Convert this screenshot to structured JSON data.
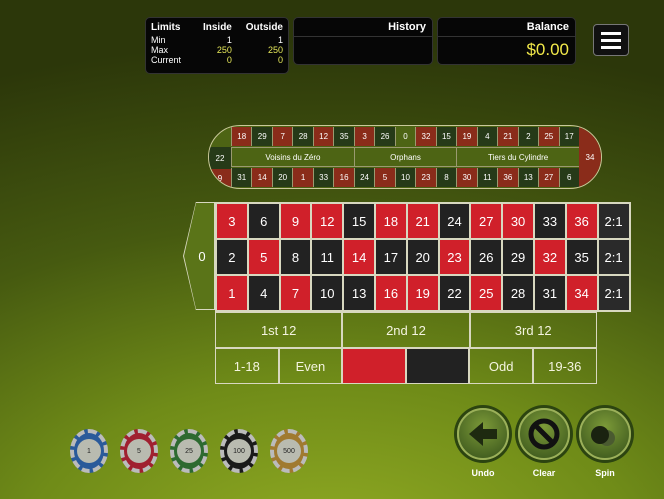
{
  "limits": {
    "title": "Limits",
    "inside_label": "Inside",
    "outside_label": "Outside",
    "rows": [
      {
        "label": "Min",
        "inside": "1",
        "outside": "1"
      },
      {
        "label": "Max",
        "inside": "250",
        "outside": "250"
      },
      {
        "label": "Current",
        "inside": "0",
        "outside": "0"
      }
    ]
  },
  "history": {
    "title": "History"
  },
  "balance": {
    "title": "Balance",
    "value": "$0.00"
  },
  "racetrack": {
    "top": [
      "18",
      "29",
      "7",
      "28",
      "12",
      "35",
      "3",
      "26",
      "0",
      "32",
      "15",
      "19",
      "4",
      "21",
      "2",
      "25",
      "17"
    ],
    "bottom": [
      "9",
      "31",
      "14",
      "20",
      "1",
      "33",
      "16",
      "24",
      "5",
      "10",
      "23",
      "8",
      "30",
      "11",
      "36",
      "13",
      "27",
      "6"
    ],
    "left": "22",
    "right": "34",
    "sections": [
      "Voisins du Zéro",
      "Orphans",
      "Tiers du Cylindre"
    ]
  },
  "table": {
    "zero": "0",
    "rows": [
      [
        "3",
        "6",
        "9",
        "12",
        "15",
        "18",
        "21",
        "24",
        "27",
        "30",
        "33",
        "36"
      ],
      [
        "2",
        "5",
        "8",
        "11",
        "14",
        "17",
        "20",
        "23",
        "26",
        "29",
        "32",
        "35"
      ],
      [
        "1",
        "4",
        "7",
        "10",
        "13",
        "16",
        "19",
        "22",
        "25",
        "28",
        "31",
        "34"
      ]
    ],
    "column_bet": "2:1",
    "dozens": [
      "1st 12",
      "2nd 12",
      "3rd 12"
    ],
    "outside": [
      "1-18",
      "Even",
      "",
      "",
      "Odd",
      "19-36"
    ],
    "reds": [
      1,
      3,
      5,
      7,
      9,
      12,
      14,
      16,
      18,
      19,
      21,
      23,
      25,
      27,
      30,
      32,
      34,
      36
    ]
  },
  "chips": [
    {
      "value": "1",
      "color": "#2a5a9a"
    },
    {
      "value": "5",
      "color": "#a02030"
    },
    {
      "value": "25",
      "color": "#2d6a30"
    },
    {
      "value": "100",
      "color": "#1a1a1a"
    },
    {
      "value": "500",
      "color": "#a07a30"
    }
  ],
  "buttons": {
    "undo": "Undo",
    "clear": "Clear",
    "spin": "Spin"
  }
}
